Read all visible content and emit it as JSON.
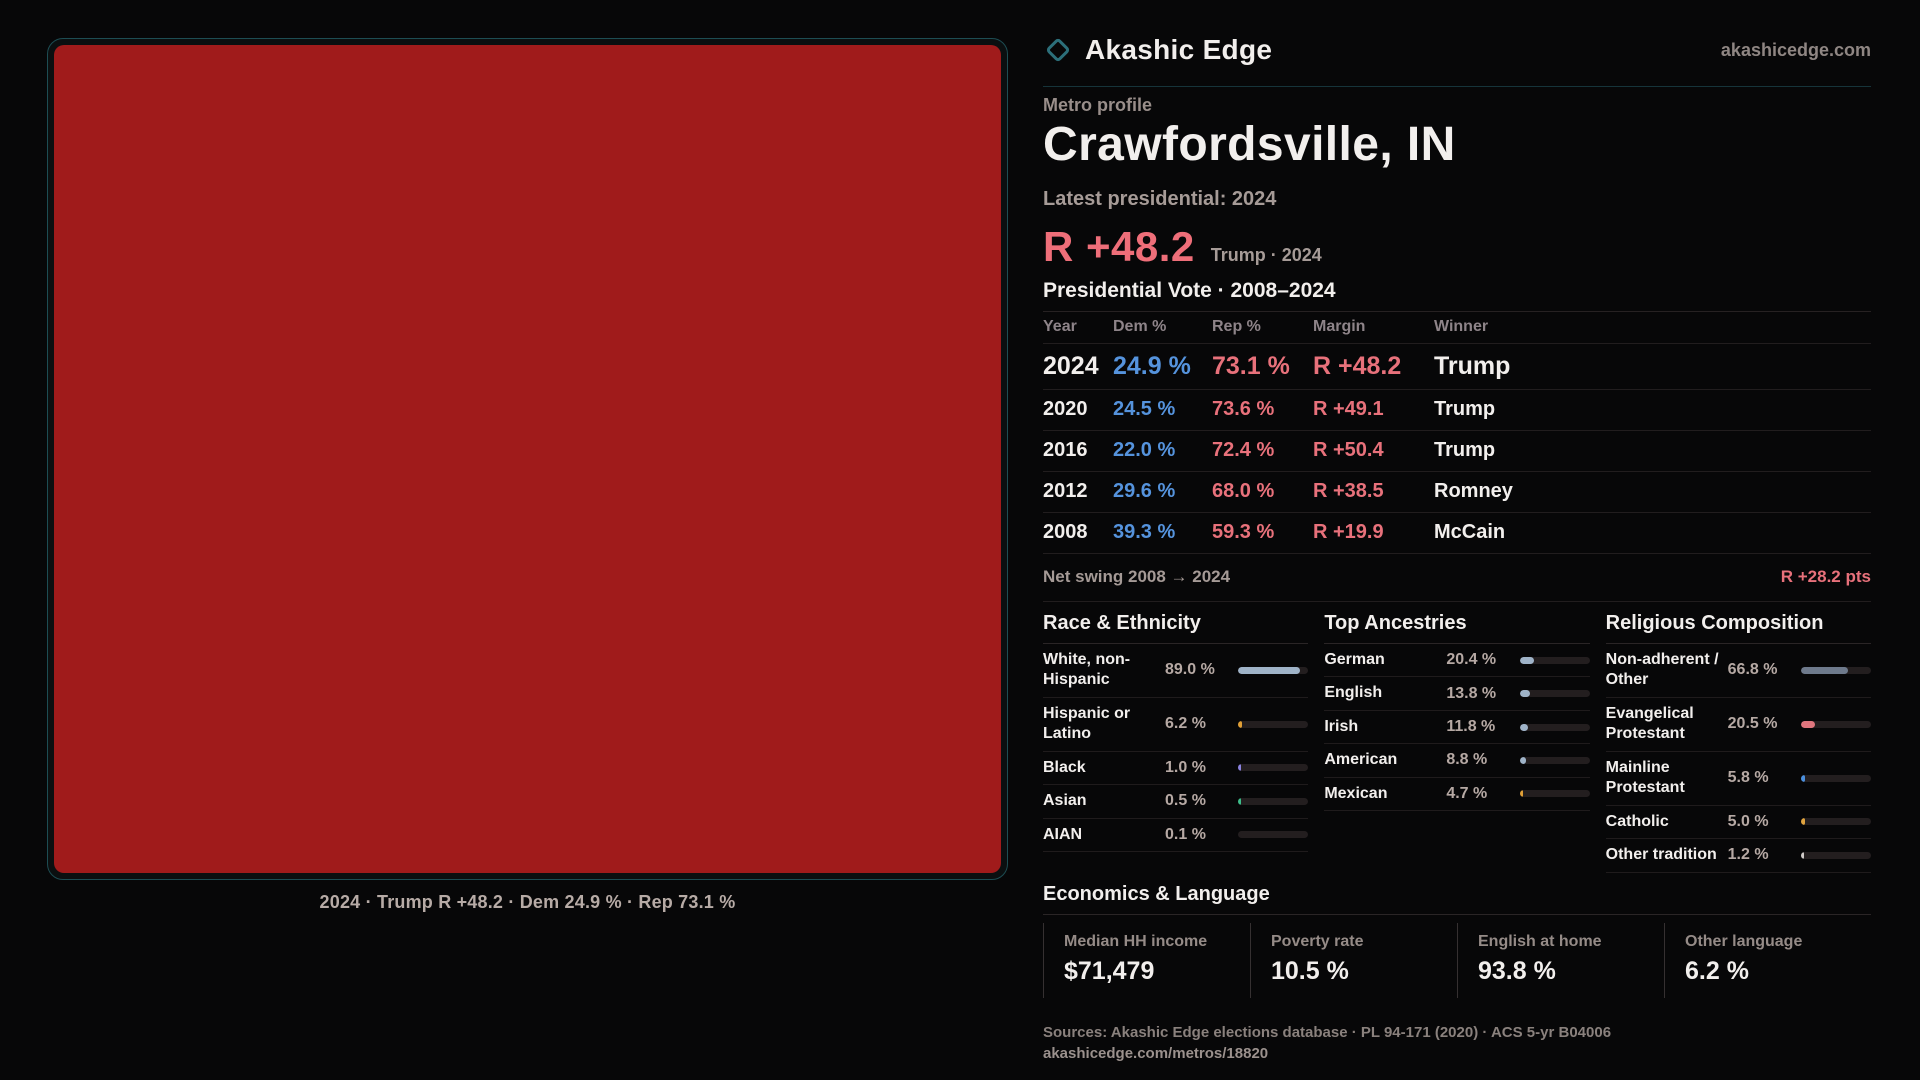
{
  "brand": {
    "name": "Akashic Edge",
    "site": "akashicedge.com",
    "accent_teal": "#2c6f7a"
  },
  "map": {
    "caption": "2024 · Trump R +48.2 · Dem 24.9 % · Rep 73.1 %",
    "fill": "#a01b1b"
  },
  "profile": {
    "kicker": "Metro profile",
    "title": "Crawfordsville, IN",
    "latest_label": "Latest presidential: 2024",
    "headline_margin": "R +48.2",
    "headline_detail": "Trump · 2024"
  },
  "colors": {
    "dem_blue": "#5593dd",
    "rep_red": "#e8717b"
  },
  "vote_table": {
    "title": "Presidential Vote · 2008–2024",
    "columns": [
      "Year",
      "Dem %",
      "Rep %",
      "Margin",
      "Winner"
    ],
    "rows": [
      {
        "year": "2024",
        "dem": "24.9 %",
        "rep": "73.1 %",
        "margin": "R +48.2",
        "winner": "Trump"
      },
      {
        "year": "2020",
        "dem": "24.5 %",
        "rep": "73.6 %",
        "margin": "R +49.1",
        "winner": "Trump"
      },
      {
        "year": "2016",
        "dem": "22.0 %",
        "rep": "72.4 %",
        "margin": "R +50.4",
        "winner": "Trump"
      },
      {
        "year": "2012",
        "dem": "29.6 %",
        "rep": "68.0 %",
        "margin": "R +38.5",
        "winner": "Romney"
      },
      {
        "year": "2008",
        "dem": "39.3 %",
        "rep": "59.3 %",
        "margin": "R +19.9",
        "winner": "McCain"
      }
    ]
  },
  "net_swing": {
    "label": "Net swing 2008 → 2024",
    "value": "R +28.2 pts"
  },
  "demographics": [
    {
      "title": "Race & Ethnicity",
      "rows": [
        {
          "label": "White, non-Hispanic",
          "value": "89.0 %",
          "pct": 89.0,
          "color": "#9fb3c8"
        },
        {
          "label": "Hispanic or Latino",
          "value": "6.2 %",
          "pct": 6.2,
          "color": "#e09f36"
        },
        {
          "label": "Black",
          "value": "1.0 %",
          "pct": 1.0,
          "color": "#8b83e0"
        },
        {
          "label": "Asian",
          "value": "0.5 %",
          "pct": 0.5,
          "color": "#3dbd8a"
        },
        {
          "label": "AIAN",
          "value": "0.1 %",
          "pct": 0.1,
          "color": "#8a8a8a"
        }
      ]
    },
    {
      "title": "Top Ancestries",
      "rows": [
        {
          "label": "German",
          "value": "20.4 %",
          "pct": 20.4,
          "color": "#9fb3c8"
        },
        {
          "label": "English",
          "value": "13.8 %",
          "pct": 13.8,
          "color": "#9fb3c8"
        },
        {
          "label": "Irish",
          "value": "11.8 %",
          "pct": 11.8,
          "color": "#9fb3c8"
        },
        {
          "label": "American",
          "value": "8.8 %",
          "pct": 8.8,
          "color": "#9fb3c8"
        },
        {
          "label": "Mexican",
          "value": "4.7 %",
          "pct": 4.7,
          "color": "#e09f36"
        }
      ]
    },
    {
      "title": "Religious Composition",
      "rows": [
        {
          "label": "Non-adherent / Other",
          "value": "66.8 %",
          "pct": 66.8,
          "color": "#6e7a8c"
        },
        {
          "label": "Evangelical Protestant",
          "value": "20.5 %",
          "pct": 20.5,
          "color": "#e0767e"
        },
        {
          "label": "Mainline Protestant",
          "value": "5.8 %",
          "pct": 5.8,
          "color": "#4b8fdc"
        },
        {
          "label": "Catholic",
          "value": "5.0 %",
          "pct": 5.0,
          "color": "#e0a33f"
        },
        {
          "label": "Other tradition",
          "value": "1.2 %",
          "pct": 1.2,
          "color": "#cfcac8"
        }
      ]
    }
  ],
  "economics": {
    "title": "Economics & Language",
    "stats": [
      {
        "label": "Median HH income",
        "value": "$71,479"
      },
      {
        "label": "Poverty rate",
        "value": "10.5 %"
      },
      {
        "label": "English at home",
        "value": "93.8 %"
      },
      {
        "label": "Other language",
        "value": "6.2 %"
      }
    ]
  },
  "footer": {
    "sources": "Sources: Akashic Edge elections database · PL 94-171 (2020) · ACS 5-yr B04006",
    "permalink": "akashicedge.com/metros/18820"
  }
}
